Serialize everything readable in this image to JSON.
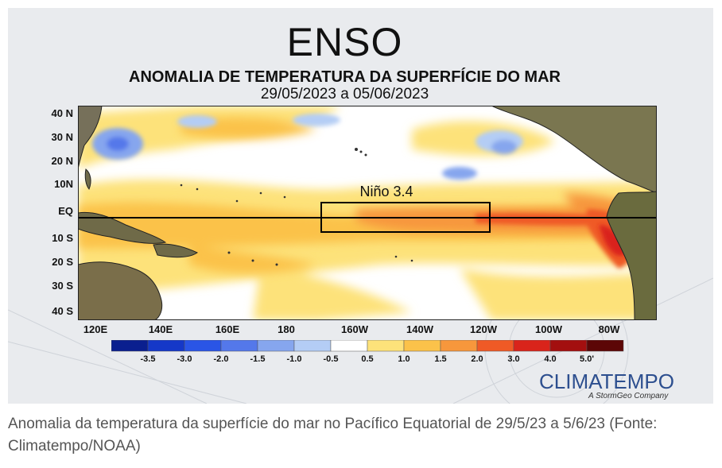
{
  "header": {
    "title": "ENSO",
    "subtitle": "ANOMALIA DE TEMPERATURA DA SUPERFÍCIE DO MAR",
    "date_range": "29/05/2023 a 05/06/2023"
  },
  "map": {
    "region_label": "Niño 3.4",
    "equator_label": "EQ",
    "lat_labels": [
      "40 N",
      "30 N",
      "20 N",
      "10N",
      "EQ",
      "10 S",
      "20 S",
      "30 S",
      "40 S"
    ],
    "lon_labels": [
      "120E",
      "140E",
      "160E",
      "180",
      "160W",
      "140W",
      "120W",
      "100W",
      "80W"
    ]
  },
  "legend": {
    "colors": [
      "#0a1f8f",
      "#1538c8",
      "#2a55e6",
      "#5478ea",
      "#86a6ee",
      "#b4cdf5",
      "#ffffff",
      "#fde27a",
      "#fbc24a",
      "#f7973c",
      "#ef5a26",
      "#d9241b",
      "#a30f0f",
      "#5c0606"
    ],
    "labels": [
      "-3.5",
      "-3.0",
      "-2.0",
      "-1.5",
      "-1.0",
      "-0.5",
      "0.5",
      "1.0",
      "1.5",
      "2.0",
      "3.0",
      "4.0",
      "5.0'"
    ]
  },
  "branding": {
    "name": "CLIMATEMPO",
    "tagline": "A StormGeo Company"
  },
  "caption": "Anomalia da temperatura da superfície do mar no Pacífico Equatorial de 29/5/23 a 5/6/23 (Fonte: Climatempo/NOAA)"
}
